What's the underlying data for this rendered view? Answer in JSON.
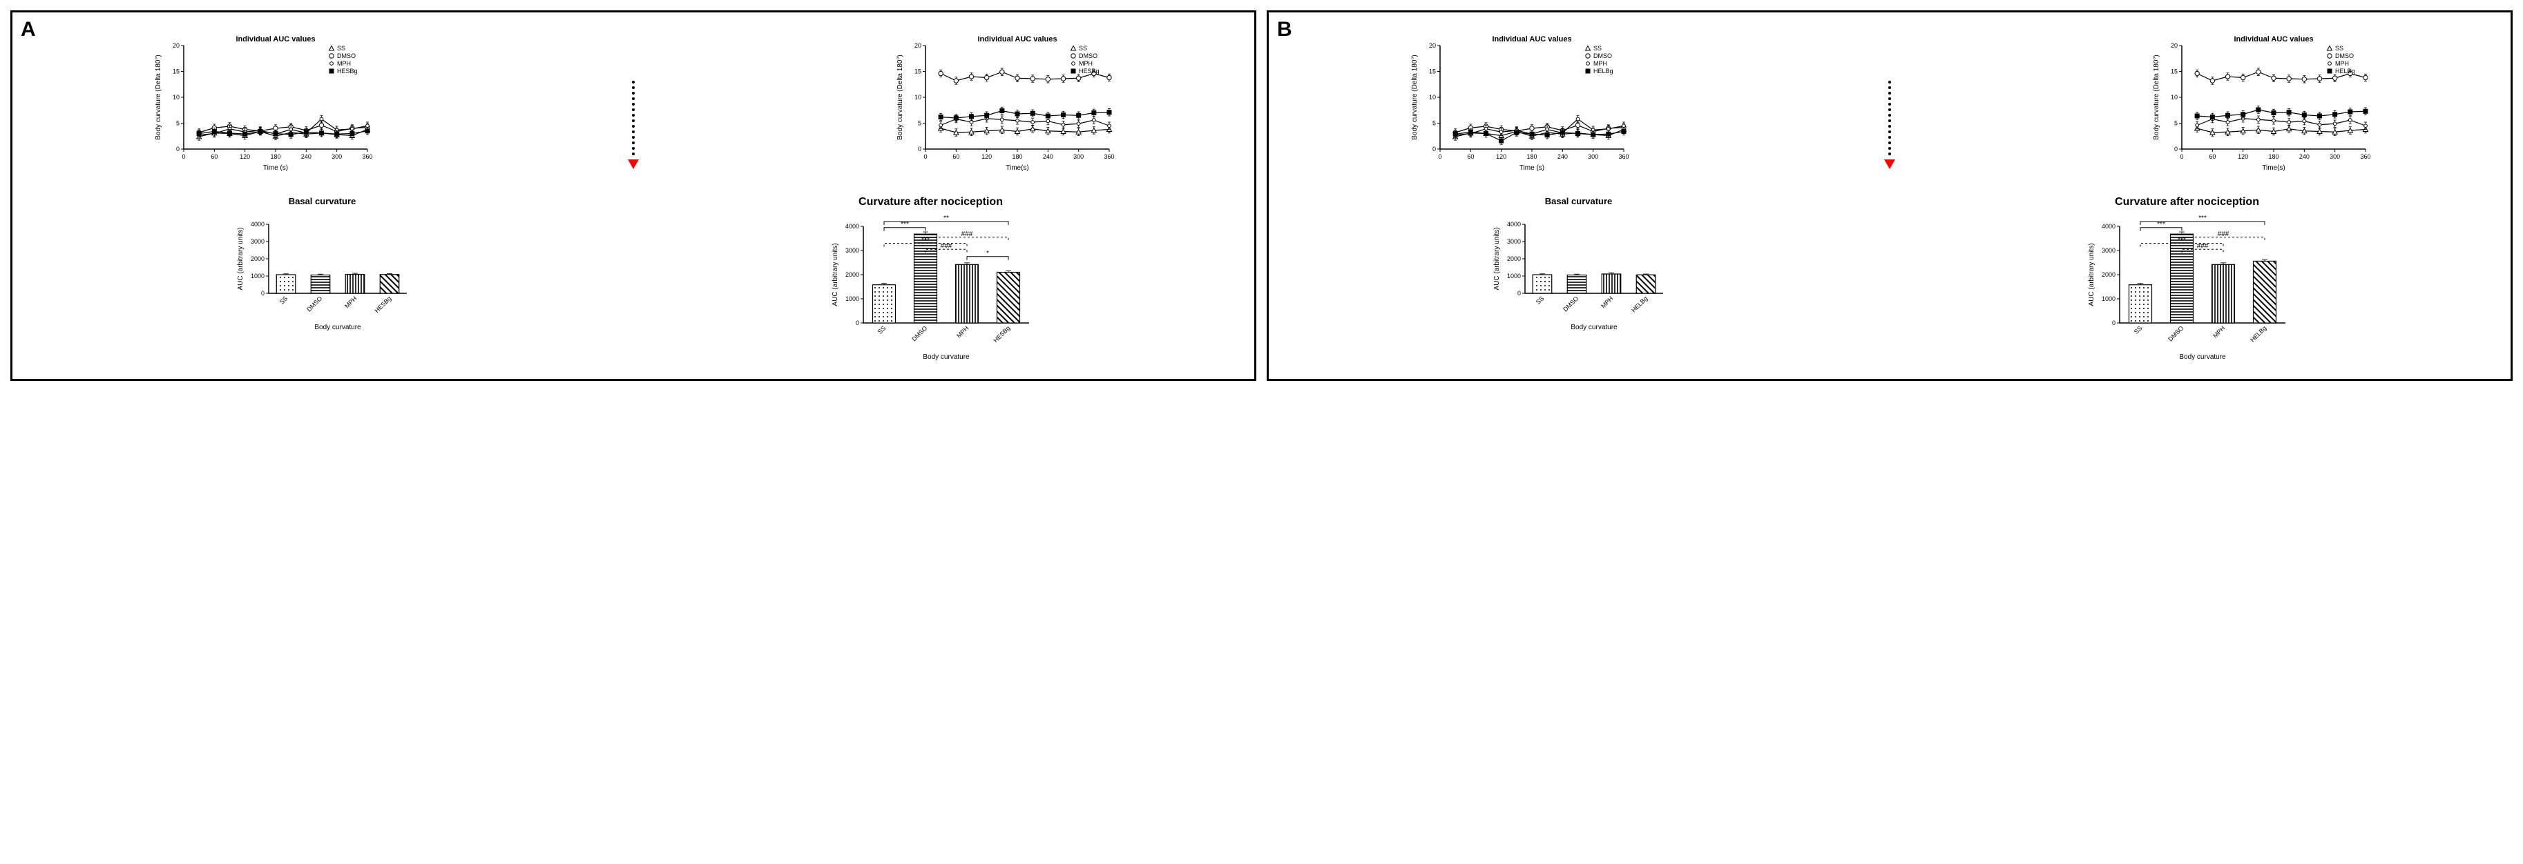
{
  "figure": {
    "background_color": "#ffffff",
    "border_color": "#000000",
    "accent_arrow_color": "#ff0000",
    "line_color": "#000000"
  },
  "panels": [
    {
      "id": "A",
      "panel_label": "A",
      "treatment_key": "HESBg",
      "line_chart_pre": {
        "title": "Individual AUC values",
        "xlabel": "Time (s)",
        "ylabel": "Body curvature (Delta 180°)",
        "xlim": [
          0,
          360
        ],
        "xtick_step": 60,
        "ylim": [
          0,
          20
        ],
        "ytick_step": 5,
        "xvals": [
          30,
          60,
          90,
          120,
          150,
          180,
          210,
          240,
          270,
          300,
          330,
          360
        ],
        "legend": [
          "SS",
          "DMSO",
          "MPH",
          "HESBg"
        ],
        "markers": [
          "triangle-open",
          "circle-open",
          "circle-open-small",
          "square-filled"
        ],
        "series": {
          "SS": [
            2.4,
            3.1,
            3.0,
            2.6,
            3.4,
            2.5,
            3.2,
            2.9,
            3.1,
            2.8,
            2.6,
            3.8
          ],
          "DMSO": [
            3.2,
            4.1,
            4.4,
            3.8,
            3.5,
            4.0,
            4.3,
            3.6,
            4.6,
            3.4,
            4.0,
            4.2
          ],
          "MPH": [
            2.7,
            3.0,
            3.9,
            3.3,
            3.6,
            2.9,
            3.8,
            3.1,
            5.8,
            3.7,
            3.9,
            4.5
          ],
          "HESBg": [
            3.0,
            3.4,
            3.1,
            2.9,
            3.4,
            3.0,
            2.8,
            3.3,
            3.1,
            2.9,
            3.0,
            3.5
          ]
        },
        "error": 0.7
      },
      "line_chart_post": {
        "title": "Individual AUC values",
        "xlabel": "Time(s)",
        "ylabel": "Body curvature (Delta 180°)",
        "xlim": [
          0,
          360
        ],
        "xtick_step": 60,
        "ylim": [
          0,
          20
        ],
        "ytick_step": 5,
        "xvals": [
          30,
          60,
          90,
          120,
          150,
          180,
          210,
          240,
          270,
          300,
          330,
          360
        ],
        "legend": [
          "SS",
          "DMSO",
          "MPH",
          "HESBg"
        ],
        "markers": [
          "triangle-open",
          "circle-open",
          "circle-open-small",
          "square-filled"
        ],
        "series": {
          "SS": [
            4.0,
            3.2,
            3.3,
            3.5,
            3.7,
            3.4,
            3.9,
            3.5,
            3.4,
            3.3,
            3.6,
            3.8
          ],
          "DMSO": [
            14.6,
            13.2,
            14.0,
            13.8,
            14.9,
            13.7,
            13.6,
            13.5,
            13.6,
            13.7,
            14.6,
            13.8
          ],
          "MPH": [
            4.6,
            5.8,
            5.2,
            5.9,
            5.7,
            5.5,
            5.2,
            5.4,
            4.7,
            4.9,
            5.6,
            4.5
          ],
          "HESBg": [
            6.2,
            6.0,
            6.3,
            6.5,
            7.4,
            6.8,
            6.9,
            6.4,
            6.6,
            6.5,
            7.0,
            7.1
          ]
        },
        "error": 0.7
      },
      "bar_basal": {
        "title": "Basal curvature",
        "xlabel": "Body curvature",
        "ylabel": "AUC (arbitrary units)",
        "ylim": [
          0,
          4000
        ],
        "ytick_step": 1000,
        "categories": [
          "SS",
          "DMSO",
          "MPH",
          "HESBg"
        ],
        "values": [
          1080,
          1060,
          1100,
          1090
        ],
        "errors": [
          50,
          50,
          60,
          50
        ],
        "patterns": [
          "dots",
          "hstripes",
          "vstripes",
          "diag"
        ]
      },
      "bar_post": {
        "title": "Curvature after nociception",
        "title_fontsize": 16,
        "xlabel": "Body curvature",
        "ylabel": "AUC (arbitrary units)",
        "ylim": [
          0,
          4000
        ],
        "ytick_step": 1000,
        "categories": [
          "SS",
          "DMSO",
          "MPH",
          "HESBg"
        ],
        "values": [
          1580,
          3680,
          2420,
          2100
        ],
        "errors": [
          60,
          90,
          70,
          60
        ],
        "patterns": [
          "dots",
          "hstripes",
          "vstripes",
          "diag"
        ],
        "sig": [
          {
            "from": 0,
            "to": 1,
            "label": "***",
            "y": 3950
          },
          {
            "from": 0,
            "to": 2,
            "label": "***",
            "y": 3300,
            "dash": true
          },
          {
            "from": 0,
            "to": 3,
            "label": "**",
            "y": 4200
          },
          {
            "from": 1,
            "to": 2,
            "label": "###",
            "y": 3050,
            "dash": true
          },
          {
            "from": 1,
            "to": 3,
            "label": "###",
            "y": 3550,
            "dash": true
          },
          {
            "from": 2,
            "to": 3,
            "label": "*",
            "y": 2750
          }
        ]
      }
    },
    {
      "id": "B",
      "panel_label": "B",
      "treatment_key": "HELBg",
      "line_chart_pre": {
        "title": "Individual AUC values",
        "xlabel": "Time (s)",
        "ylabel": "Body curvature (Delta 180°)",
        "xlim": [
          0,
          360
        ],
        "xtick_step": 60,
        "ylim": [
          0,
          20
        ],
        "ytick_step": 5,
        "xvals": [
          30,
          60,
          90,
          120,
          150,
          180,
          210,
          240,
          270,
          300,
          330,
          360
        ],
        "legend": [
          "SS",
          "DMSO",
          "MPH",
          "HELBg"
        ],
        "markers": [
          "triangle-open",
          "circle-open",
          "circle-open-small",
          "square-filled"
        ],
        "series": {
          "SS": [
            2.4,
            3.1,
            3.0,
            2.6,
            3.4,
            2.5,
            3.2,
            2.9,
            3.1,
            2.8,
            2.6,
            3.8
          ],
          "DMSO": [
            3.2,
            4.1,
            4.4,
            3.8,
            3.5,
            4.0,
            4.3,
            3.6,
            4.6,
            3.4,
            4.0,
            4.2
          ],
          "MPH": [
            2.7,
            3.0,
            3.9,
            3.3,
            3.6,
            2.9,
            3.8,
            3.1,
            5.8,
            3.7,
            3.9,
            4.5
          ],
          "HELBg": [
            2.9,
            3.3,
            3.0,
            1.6,
            3.2,
            2.9,
            2.7,
            3.2,
            3.0,
            2.8,
            2.9,
            3.4
          ]
        },
        "error": 0.7
      },
      "line_chart_post": {
        "title": "Individual AUC values",
        "xlabel": "Time(s)",
        "ylabel": "Body curvature (Delta 180°)",
        "xlim": [
          0,
          360
        ],
        "xtick_step": 60,
        "ylim": [
          0,
          20
        ],
        "ytick_step": 5,
        "xvals": [
          30,
          60,
          90,
          120,
          150,
          180,
          210,
          240,
          270,
          300,
          330,
          360
        ],
        "legend": [
          "SS",
          "DMSO",
          "MPH",
          "HELBg"
        ],
        "markers": [
          "triangle-open",
          "circle-open",
          "circle-open-small",
          "square-filled"
        ],
        "series": {
          "SS": [
            4.0,
            3.2,
            3.3,
            3.5,
            3.7,
            3.4,
            3.9,
            3.5,
            3.4,
            3.3,
            3.6,
            3.8
          ],
          "DMSO": [
            14.6,
            13.2,
            14.0,
            13.8,
            14.9,
            13.7,
            13.6,
            13.5,
            13.6,
            13.7,
            14.6,
            13.8
          ],
          "MPH": [
            4.6,
            5.8,
            5.2,
            5.9,
            5.7,
            5.5,
            5.2,
            5.4,
            4.7,
            4.9,
            5.6,
            4.5
          ],
          "HELBg": [
            6.4,
            6.2,
            6.5,
            6.7,
            7.6,
            7.0,
            7.1,
            6.6,
            6.4,
            6.7,
            7.2,
            7.3
          ]
        },
        "error": 0.7
      },
      "bar_basal": {
        "title": "Basal curvature",
        "xlabel": "Body curvature",
        "ylabel": "AUC (arbitrary units)",
        "ylim": [
          0,
          4000
        ],
        "ytick_step": 1000,
        "categories": [
          "SS",
          "DMSO",
          "MPH",
          "HELBg"
        ],
        "values": [
          1080,
          1060,
          1120,
          1070
        ],
        "errors": [
          50,
          50,
          70,
          50
        ],
        "patterns": [
          "dots",
          "hstripes",
          "vstripes",
          "diag"
        ]
      },
      "bar_post": {
        "title": "Curvature after nociception",
        "title_fontsize": 16,
        "xlabel": "Body curvature",
        "ylabel": "AUC (arbitrary units)",
        "ylim": [
          0,
          4000
        ],
        "ytick_step": 1000,
        "categories": [
          "SS",
          "DMSO",
          "MPH",
          "HELBg"
        ],
        "values": [
          1580,
          3680,
          2420,
          2560
        ],
        "errors": [
          60,
          90,
          70,
          70
        ],
        "patterns": [
          "dots",
          "hstripes",
          "vstripes",
          "diag"
        ],
        "sig": [
          {
            "from": 0,
            "to": 1,
            "label": "***",
            "y": 3950
          },
          {
            "from": 0,
            "to": 2,
            "label": "***",
            "y": 3300,
            "dash": true
          },
          {
            "from": 0,
            "to": 3,
            "label": "***",
            "y": 4200
          },
          {
            "from": 1,
            "to": 2,
            "label": "###",
            "y": 3050,
            "dash": true
          },
          {
            "from": 1,
            "to": 3,
            "label": "###",
            "y": 3550,
            "dash": true
          }
        ]
      }
    }
  ]
}
